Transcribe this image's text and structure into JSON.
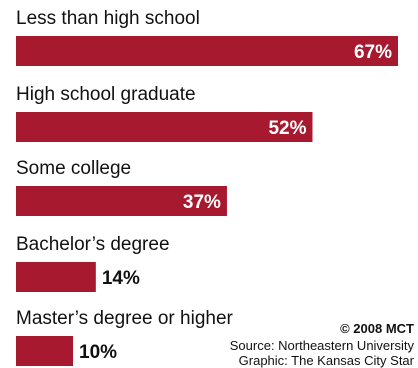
{
  "chart_data": {
    "type": "bar",
    "orientation": "horizontal",
    "categories": [
      "Less than high school",
      "High school graduate",
      "Some college",
      "Bachelor’s degree",
      "Master’s degree or higher"
    ],
    "values": [
      67,
      52,
      37,
      14,
      10
    ],
    "value_labels": [
      "67%",
      "52%",
      "37%",
      "14%",
      "10%"
    ],
    "xlim": [
      0,
      67
    ],
    "bar_color": "#a6192e",
    "grid": false
  },
  "credits": {
    "copyright": "© 2008 MCT",
    "source": "Source: Northeastern University",
    "source_line2": "Graphic: The Kansas City Star"
  }
}
